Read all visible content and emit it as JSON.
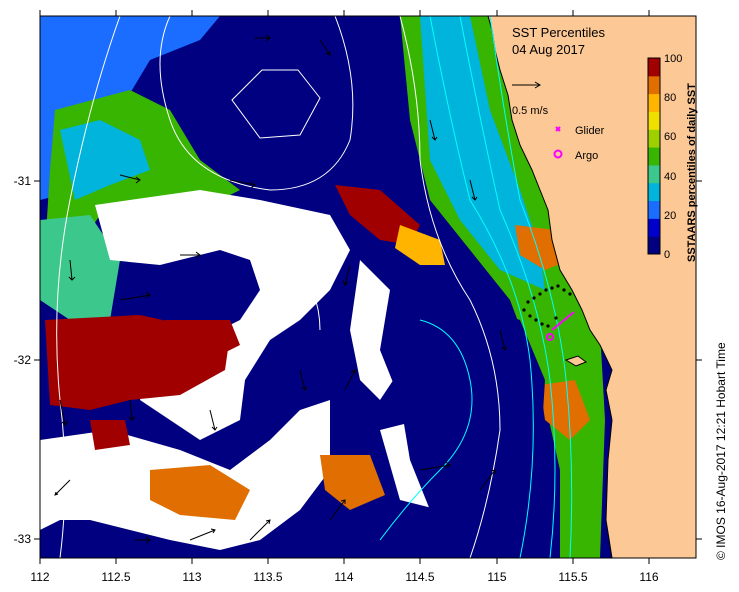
{
  "title": {
    "line1": "SST Percentiles",
    "line2": "04 Aug 2017"
  },
  "legend": {
    "vector_label": "0.5 m/s",
    "glider_label": "Glider",
    "argo_label": "Argo",
    "glider_color": "#ff00ff",
    "argo_color": "#ff00ff"
  },
  "colorbar": {
    "title": "SSTAARS percentiles of daily SST",
    "ticks": [
      "0",
      "20",
      "40",
      "60",
      "80",
      "100"
    ],
    "colors": [
      "#000080",
      "#0000cd",
      "#1a6dff",
      "#00b4dc",
      "#3cc88c",
      "#37b500",
      "#9ed000",
      "#f0e000",
      "#ffb400",
      "#e06e00",
      "#a00000"
    ]
  },
  "credit": "© IMOS 16-Aug-2017 12:21 Hobart Time",
  "axes": {
    "x_ticks": [
      "112",
      "112.5",
      "113",
      "113.5",
      "114",
      "114.5",
      "115",
      "115.5",
      "116"
    ],
    "y_ticks": [
      "-31",
      "-32",
      "-33"
    ],
    "x_range": [
      112,
      116.3
    ],
    "y_range": [
      -33.1,
      -30.1
    ]
  },
  "colors": {
    "land": "#fcc896",
    "no_data": "#ffffff"
  }
}
